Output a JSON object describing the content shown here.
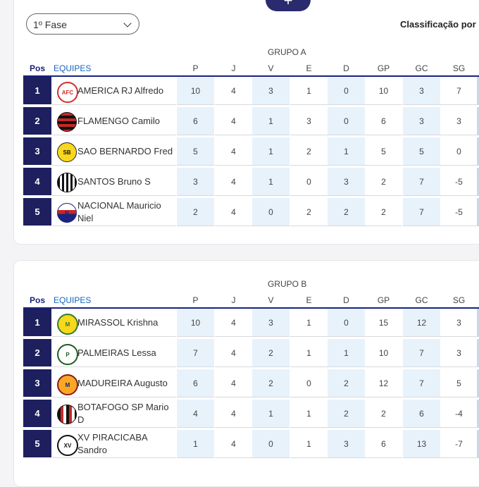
{
  "toolbar": {
    "add_label": "+"
  },
  "phase_select": {
    "value": "1º Fase"
  },
  "classification_label": "Classificação por",
  "columns": [
    "P",
    "J",
    "V",
    "E",
    "D",
    "GP",
    "GC",
    "SG"
  ],
  "header": {
    "pos": "Pos",
    "team": "EQUIPES"
  },
  "colors": {
    "pos_bg": "#1d1f5e",
    "alt_col": "#e8f2fb",
    "accent": "#1565c0"
  },
  "groups": [
    {
      "title": "GRUPO A",
      "rows": [
        {
          "pos": "1",
          "team": "AMERICA RJ Alfredo",
          "crest": "america-crest",
          "stats": [
            "10",
            "4",
            "3",
            "1",
            "0",
            "10",
            "3",
            "7"
          ]
        },
        {
          "pos": "2",
          "team": "FLAMENGO Camilo",
          "crest": "flamengo-crest",
          "stats": [
            "6",
            "4",
            "1",
            "3",
            "0",
            "6",
            "3",
            "3"
          ]
        },
        {
          "pos": "3",
          "team": "SAO BERNARDO Fred",
          "crest": "sao-bernardo-crest",
          "stats": [
            "5",
            "4",
            "1",
            "2",
            "1",
            "5",
            "5",
            "0"
          ]
        },
        {
          "pos": "4",
          "team": "SANTOS Bruno S",
          "crest": "santos-crest",
          "stats": [
            "3",
            "4",
            "1",
            "0",
            "3",
            "2",
            "7",
            "-5"
          ]
        },
        {
          "pos": "5",
          "team": "NACIONAL Mauricio Niel",
          "crest": "nacional-crest",
          "stats": [
            "2",
            "4",
            "0",
            "2",
            "2",
            "2",
            "7",
            "-5"
          ]
        }
      ]
    },
    {
      "title": "GRUPO B",
      "rows": [
        {
          "pos": "1",
          "team": "MIRASSOL Krishna",
          "crest": "mirassol-crest",
          "stats": [
            "10",
            "4",
            "3",
            "1",
            "0",
            "15",
            "12",
            "3"
          ]
        },
        {
          "pos": "2",
          "team": "PALMEIRAS Lessa",
          "crest": "palmeiras-crest",
          "stats": [
            "7",
            "4",
            "2",
            "1",
            "1",
            "10",
            "7",
            "3"
          ]
        },
        {
          "pos": "3",
          "team": "MADUREIRA Augusto",
          "crest": "madureira-crest",
          "stats": [
            "6",
            "4",
            "2",
            "0",
            "2",
            "12",
            "7",
            "5"
          ]
        },
        {
          "pos": "4",
          "team": "BOTAFOGO SP Mario D",
          "crest": "botafogo-sp-crest",
          "stats": [
            "4",
            "4",
            "1",
            "1",
            "2",
            "2",
            "6",
            "-4"
          ]
        },
        {
          "pos": "5",
          "team": "XV PIRACICABA Sandro",
          "crest": "xv-piracicaba-crest",
          "stats": [
            "1",
            "4",
            "0",
            "1",
            "3",
            "6",
            "13",
            "-7"
          ]
        }
      ]
    }
  ]
}
